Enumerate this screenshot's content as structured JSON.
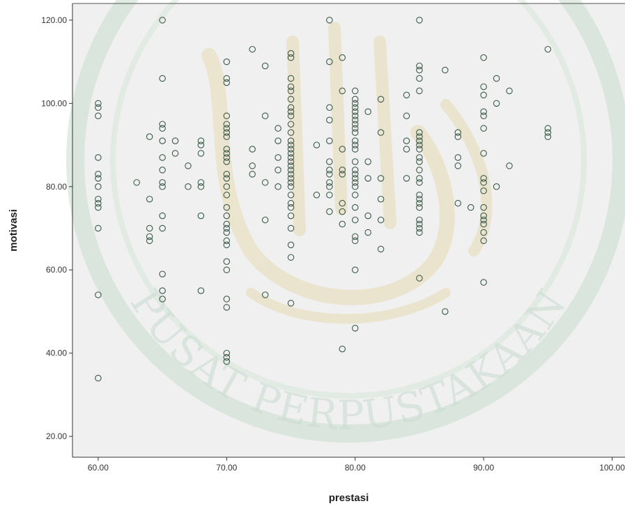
{
  "chart_data": {
    "type": "scatter",
    "title": "",
    "xlabel": "prestasi",
    "ylabel": "motivasi",
    "xlim": [
      58,
      101
    ],
    "ylim": [
      15,
      124
    ],
    "xticks": [
      60,
      70,
      80,
      90,
      100
    ],
    "yticks": [
      20,
      40,
      60,
      80,
      100,
      120
    ],
    "xtick_labels": [
      "60.00",
      "70.00",
      "80.00",
      "90.00",
      "100.00"
    ],
    "ytick_labels": [
      "20.00",
      "40.00",
      "60.00",
      "80.00",
      "100.00",
      "120.00"
    ],
    "grid": false,
    "legend": "none",
    "plot_background": "#f0f0f0",
    "marker_color": "#3a5a48",
    "marker_style": "hollow-circle",
    "points": [
      [
        60,
        100
      ],
      [
        60,
        99
      ],
      [
        60,
        97
      ],
      [
        60,
        87
      ],
      [
        60,
        83
      ],
      [
        60,
        82
      ],
      [
        60,
        80
      ],
      [
        60,
        77
      ],
      [
        60,
        76
      ],
      [
        60,
        75
      ],
      [
        60,
        70
      ],
      [
        60,
        54
      ],
      [
        60,
        34
      ],
      [
        63,
        81
      ],
      [
        64,
        92
      ],
      [
        64,
        77
      ],
      [
        64,
        70
      ],
      [
        64,
        68
      ],
      [
        64,
        67
      ],
      [
        65,
        120
      ],
      [
        65,
        106
      ],
      [
        65,
        95
      ],
      [
        65,
        94
      ],
      [
        65,
        91
      ],
      [
        65,
        87
      ],
      [
        65,
        84
      ],
      [
        65,
        81
      ],
      [
        65,
        80
      ],
      [
        65,
        73
      ],
      [
        65,
        70
      ],
      [
        65,
        59
      ],
      [
        65,
        55
      ],
      [
        65,
        53
      ],
      [
        66,
        91
      ],
      [
        66,
        88
      ],
      [
        67,
        85
      ],
      [
        67,
        80
      ],
      [
        68,
        91
      ],
      [
        68,
        90
      ],
      [
        68,
        88
      ],
      [
        68,
        81
      ],
      [
        68,
        80
      ],
      [
        68,
        73
      ],
      [
        68,
        55
      ],
      [
        70,
        110
      ],
      [
        70,
        106
      ],
      [
        70,
        105
      ],
      [
        70,
        97
      ],
      [
        70,
        95
      ],
      [
        70,
        94
      ],
      [
        70,
        93
      ],
      [
        70,
        92
      ],
      [
        70,
        89
      ],
      [
        70,
        88
      ],
      [
        70,
        87
      ],
      [
        70,
        86
      ],
      [
        70,
        83
      ],
      [
        70,
        82
      ],
      [
        70,
        80
      ],
      [
        70,
        78
      ],
      [
        70,
        75
      ],
      [
        70,
        73
      ],
      [
        70,
        71
      ],
      [
        70,
        70
      ],
      [
        70,
        69
      ],
      [
        70,
        67
      ],
      [
        70,
        66
      ],
      [
        70,
        62
      ],
      [
        70,
        60
      ],
      [
        70,
        53
      ],
      [
        70,
        51
      ],
      [
        70,
        40
      ],
      [
        70,
        39
      ],
      [
        70,
        38
      ],
      [
        72,
        113
      ],
      [
        72,
        89
      ],
      [
        72,
        85
      ],
      [
        72,
        83
      ],
      [
        73,
        109
      ],
      [
        73,
        97
      ],
      [
        73,
        81
      ],
      [
        73,
        72
      ],
      [
        73,
        54
      ],
      [
        74,
        94
      ],
      [
        74,
        91
      ],
      [
        74,
        87
      ],
      [
        74,
        84
      ],
      [
        74,
        80
      ],
      [
        75,
        112
      ],
      [
        75,
        111
      ],
      [
        75,
        106
      ],
      [
        75,
        104
      ],
      [
        75,
        103
      ],
      [
        75,
        101
      ],
      [
        75,
        99
      ],
      [
        75,
        98
      ],
      [
        75,
        97
      ],
      [
        75,
        95
      ],
      [
        75,
        93
      ],
      [
        75,
        91
      ],
      [
        75,
        90
      ],
      [
        75,
        89
      ],
      [
        75,
        88
      ],
      [
        75,
        87
      ],
      [
        75,
        86
      ],
      [
        75,
        85
      ],
      [
        75,
        84
      ],
      [
        75,
        83
      ],
      [
        75,
        82
      ],
      [
        75,
        81
      ],
      [
        75,
        80
      ],
      [
        75,
        78
      ],
      [
        75,
        76
      ],
      [
        75,
        75
      ],
      [
        75,
        73
      ],
      [
        75,
        70
      ],
      [
        75,
        66
      ],
      [
        75,
        63
      ],
      [
        75,
        52
      ],
      [
        77,
        90
      ],
      [
        77,
        78
      ],
      [
        78,
        120
      ],
      [
        78,
        110
      ],
      [
        78,
        99
      ],
      [
        78,
        96
      ],
      [
        78,
        91
      ],
      [
        78,
        86
      ],
      [
        78,
        84
      ],
      [
        78,
        83
      ],
      [
        78,
        81
      ],
      [
        78,
        80
      ],
      [
        78,
        78
      ],
      [
        78,
        74
      ],
      [
        79,
        111
      ],
      [
        79,
        103
      ],
      [
        79,
        89
      ],
      [
        79,
        84
      ],
      [
        79,
        83
      ],
      [
        79,
        76
      ],
      [
        79,
        74
      ],
      [
        79,
        71
      ],
      [
        79,
        41
      ],
      [
        80,
        103
      ],
      [
        80,
        101
      ],
      [
        80,
        100
      ],
      [
        80,
        99
      ],
      [
        80,
        98
      ],
      [
        80,
        97
      ],
      [
        80,
        96
      ],
      [
        80,
        95
      ],
      [
        80,
        94
      ],
      [
        80,
        93
      ],
      [
        80,
        91
      ],
      [
        80,
        90
      ],
      [
        80,
        89
      ],
      [
        80,
        86
      ],
      [
        80,
        84
      ],
      [
        80,
        83
      ],
      [
        80,
        82
      ],
      [
        80,
        81
      ],
      [
        80,
        80
      ],
      [
        80,
        78
      ],
      [
        80,
        75
      ],
      [
        80,
        72
      ],
      [
        80,
        68
      ],
      [
        80,
        67
      ],
      [
        80,
        60
      ],
      [
        80,
        46
      ],
      [
        81,
        98
      ],
      [
        81,
        86
      ],
      [
        81,
        82
      ],
      [
        81,
        73
      ],
      [
        81,
        69
      ],
      [
        82,
        101
      ],
      [
        82,
        93
      ],
      [
        82,
        82
      ],
      [
        82,
        77
      ],
      [
        82,
        72
      ],
      [
        82,
        65
      ],
      [
        84,
        102
      ],
      [
        84,
        97
      ],
      [
        84,
        91
      ],
      [
        84,
        89
      ],
      [
        84,
        82
      ],
      [
        85,
        120
      ],
      [
        85,
        109
      ],
      [
        85,
        108
      ],
      [
        85,
        106
      ],
      [
        85,
        103
      ],
      [
        85,
        93
      ],
      [
        85,
        92
      ],
      [
        85,
        91
      ],
      [
        85,
        90
      ],
      [
        85,
        89
      ],
      [
        85,
        87
      ],
      [
        85,
        86
      ],
      [
        85,
        84
      ],
      [
        85,
        82
      ],
      [
        85,
        81
      ],
      [
        85,
        78
      ],
      [
        85,
        77
      ],
      [
        85,
        76
      ],
      [
        85,
        75
      ],
      [
        85,
        72
      ],
      [
        85,
        71
      ],
      [
        85,
        70
      ],
      [
        85,
        69
      ],
      [
        85,
        58
      ],
      [
        87,
        108
      ],
      [
        87,
        50
      ],
      [
        88,
        93
      ],
      [
        88,
        92
      ],
      [
        88,
        87
      ],
      [
        88,
        85
      ],
      [
        88,
        76
      ],
      [
        89,
        75
      ],
      [
        90,
        111
      ],
      [
        90,
        104
      ],
      [
        90,
        102
      ],
      [
        90,
        98
      ],
      [
        90,
        97
      ],
      [
        90,
        94
      ],
      [
        90,
        88
      ],
      [
        90,
        82
      ],
      [
        90,
        81
      ],
      [
        90,
        79
      ],
      [
        90,
        75
      ],
      [
        90,
        73
      ],
      [
        90,
        72
      ],
      [
        90,
        71
      ],
      [
        90,
        69
      ],
      [
        90,
        67
      ],
      [
        90,
        57
      ],
      [
        91,
        106
      ],
      [
        91,
        100
      ],
      [
        91,
        80
      ],
      [
        92,
        103
      ],
      [
        92,
        85
      ],
      [
        95,
        113
      ],
      [
        95,
        94
      ],
      [
        95,
        93
      ],
      [
        95,
        92
      ]
    ]
  },
  "watermark": {
    "text": "PUSAT PERPUSTAKAAN"
  }
}
